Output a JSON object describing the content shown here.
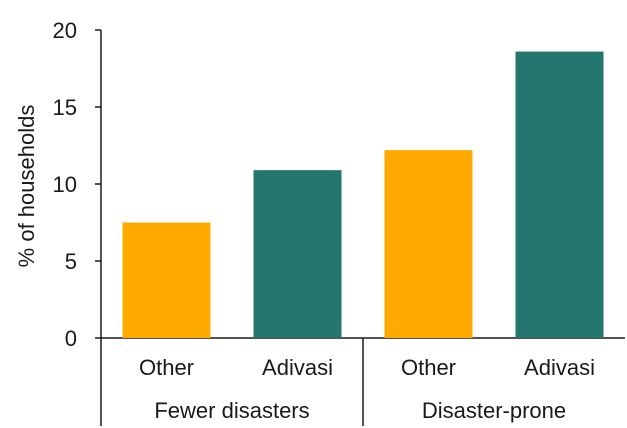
{
  "chart_data": {
    "type": "bar",
    "title": "",
    "xlabel": "",
    "ylabel": "% of households",
    "ylim": [
      0,
      20
    ],
    "yticks": [
      0,
      5,
      10,
      15,
      20
    ],
    "grid": false,
    "groups": [
      {
        "label": "Fewer disasters",
        "bars": [
          {
            "category": "Other",
            "value": 7.5,
            "color": "#FFAA00"
          },
          {
            "category": "Adivasi",
            "value": 10.9,
            "color": "#267670"
          }
        ]
      },
      {
        "label": "Disaster-prone",
        "bars": [
          {
            "category": "Other",
            "value": 12.2,
            "color": "#FFAA00"
          },
          {
            "category": "Adivasi",
            "value": 18.6,
            "color": "#267670"
          }
        ]
      }
    ]
  }
}
